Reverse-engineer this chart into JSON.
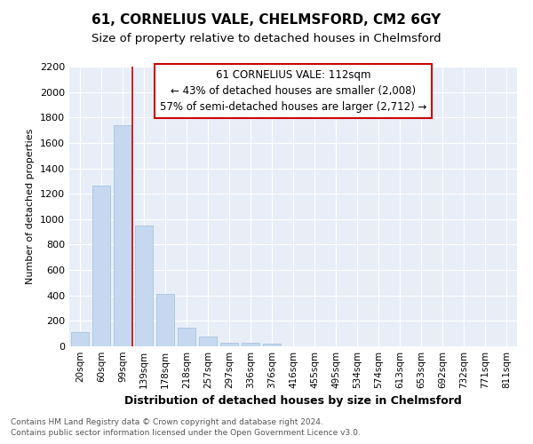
{
  "title1": "61, CORNELIUS VALE, CHELMSFORD, CM2 6GY",
  "title2": "Size of property relative to detached houses in Chelmsford",
  "xlabel": "Distribution of detached houses by size in Chelmsford",
  "ylabel": "Number of detached properties",
  "categories": [
    "20sqm",
    "60sqm",
    "99sqm",
    "139sqm",
    "178sqm",
    "218sqm",
    "257sqm",
    "297sqm",
    "336sqm",
    "376sqm",
    "416sqm",
    "455sqm",
    "495sqm",
    "534sqm",
    "574sqm",
    "613sqm",
    "653sqm",
    "692sqm",
    "732sqm",
    "771sqm",
    "811sqm"
  ],
  "values": [
    115,
    1265,
    1740,
    950,
    415,
    150,
    75,
    30,
    30,
    20,
    0,
    0,
    0,
    0,
    0,
    0,
    0,
    0,
    0,
    0,
    0
  ],
  "bar_color": "#c5d8f0",
  "bar_edge_color": "#a0bedd",
  "red_line_x": 2.45,
  "red_line_label": "61 CORNELIUS VALE: 112sqm",
  "annotation_text1": "← 43% of detached houses are smaller (2,008)",
  "annotation_text2": "57% of semi-detached houses are larger (2,712) →",
  "box_color": "#cc0000",
  "ylim": [
    0,
    2200
  ],
  "yticks": [
    0,
    200,
    400,
    600,
    800,
    1000,
    1200,
    1400,
    1600,
    1800,
    2000,
    2200
  ],
  "footnote1": "Contains HM Land Registry data © Crown copyright and database right 2024.",
  "footnote2": "Contains public sector information licensed under the Open Government Licence v3.0.",
  "bg_color": "#e8eef8",
  "grid_color": "#ffffff",
  "title1_fontsize": 11,
  "title2_fontsize": 9.5,
  "xlabel_fontsize": 9,
  "ylabel_fontsize": 8,
  "bar_width": 0.85,
  "annot_fontsize": 8.5
}
